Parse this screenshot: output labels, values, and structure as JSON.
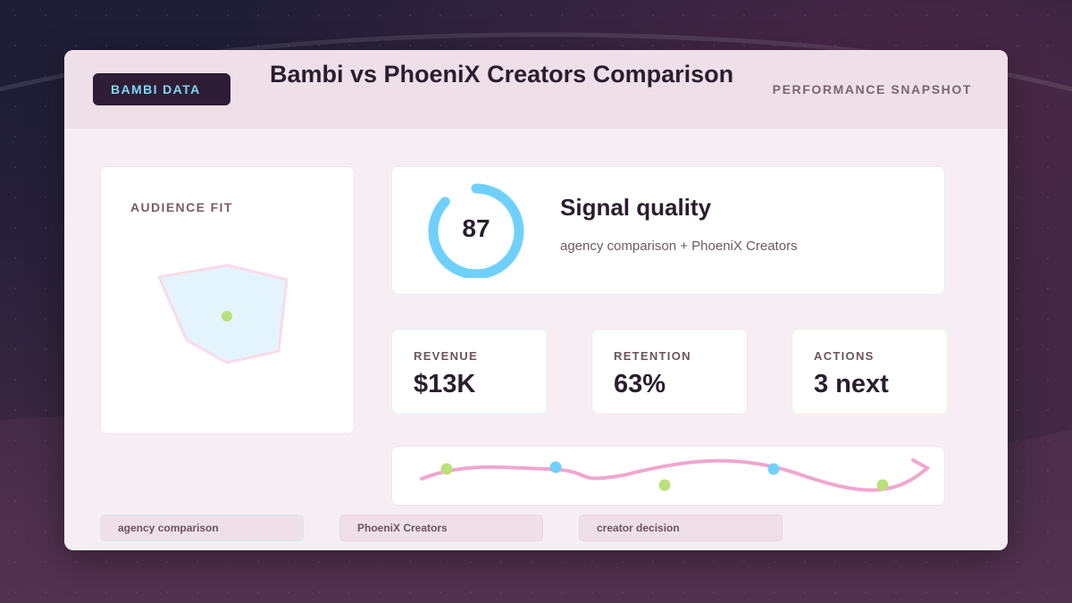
{
  "header": {
    "brand": "BAMBI DATA",
    "title": "Bambi vs PhoeniX Creators Comparison",
    "snapshot": "PERFORMANCE SNAPSHOT"
  },
  "audience": {
    "label": "AUDIENCE FIT"
  },
  "signal": {
    "score": "87",
    "score_fraction": 0.87,
    "title": "Signal quality",
    "subtitle": "agency comparison + PhoeniX Creators"
  },
  "metrics": [
    {
      "label": "REVENUE",
      "value": "$13K"
    },
    {
      "label": "RETENTION",
      "value": "63%"
    },
    {
      "label": "ACTIONS",
      "value": "3 next"
    }
  ],
  "chips": [
    "agency comparison",
    "PhoeniX Creators",
    "creator decision"
  ],
  "colors": {
    "brand_bg": "#2e1d35",
    "brand_text": "#7fd6f7",
    "gauge": "#6fd1fb",
    "gauge_track": "#ffffff",
    "trend_line": "#f0a6cf",
    "dot_blue": "#6fd1fb",
    "dot_green": "#b9e07a",
    "radar_fill": "#e3f4fc",
    "radar_stroke": "#fbdbe8"
  }
}
